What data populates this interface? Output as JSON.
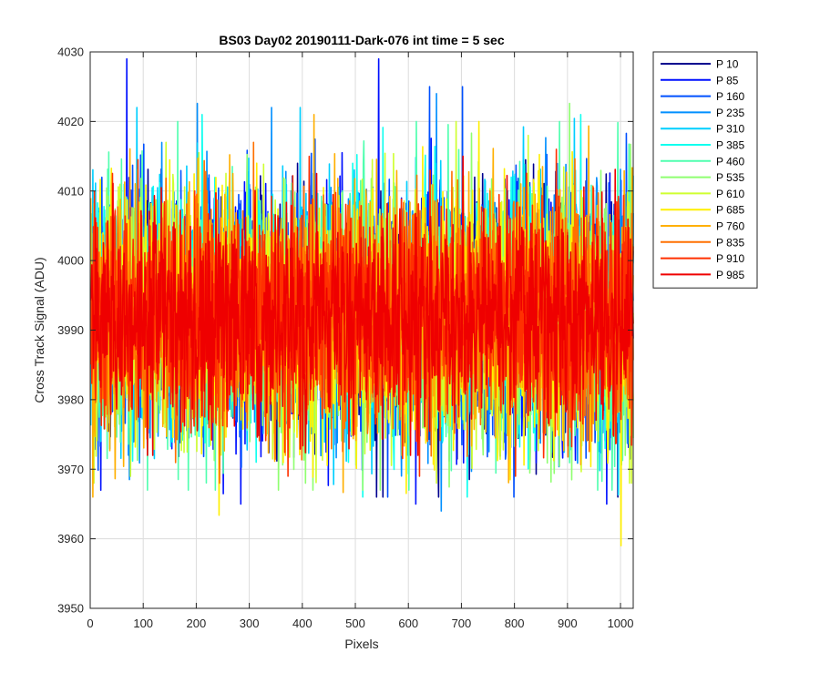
{
  "chart_data": {
    "type": "line",
    "title": "BS03 Day02 20190111-Dark-076 int time = 5 sec",
    "xlabel": "Pixels",
    "ylabel": "Cross Track Signal (ADU)",
    "xlim": [
      0,
      1024
    ],
    "ylim": [
      3950,
      4030
    ],
    "xticks": [
      0,
      100,
      200,
      300,
      400,
      500,
      600,
      700,
      800,
      900,
      1000
    ],
    "yticks": [
      3950,
      3960,
      3970,
      3980,
      3990,
      4000,
      4010,
      4020,
      4030
    ],
    "grid": true,
    "legend_position": "outside-top-right",
    "series": [
      {
        "name": "P 10",
        "color": "#00008F",
        "mean": 3992,
        "noise": 9.0,
        "min": 3966,
        "max": 4028
      },
      {
        "name": "P 85",
        "color": "#0010FF",
        "mean": 3992,
        "noise": 9.0,
        "min": 3965,
        "max": 4029
      },
      {
        "name": "P 160",
        "color": "#0050FF",
        "mean": 3992,
        "noise": 9.0,
        "min": 3966,
        "max": 4025
      },
      {
        "name": "P 235",
        "color": "#008FFF",
        "mean": 3992,
        "noise": 9.0,
        "min": 3964,
        "max": 4024
      },
      {
        "name": "P 310",
        "color": "#00CFFF",
        "mean": 3992,
        "noise": 9.0,
        "min": 3963,
        "max": 4022
      },
      {
        "name": "P 385",
        "color": "#10FFEF",
        "mean": 3992,
        "noise": 9.0,
        "min": 3966,
        "max": 4021
      },
      {
        "name": "P 460",
        "color": "#50FFAF",
        "mean": 3992,
        "noise": 9.0,
        "min": 3967,
        "max": 4020
      },
      {
        "name": "P 535",
        "color": "#8FFF70",
        "mean": 3992,
        "noise": 9.0,
        "min": 3967,
        "max": 4027
      },
      {
        "name": "P 610",
        "color": "#CFFF30",
        "mean": 3992,
        "noise": 9.0,
        "min": 3968,
        "max": 4020
      },
      {
        "name": "P 685",
        "color": "#FFEF00",
        "mean": 3992,
        "noise": 9.0,
        "min": 3959,
        "max": 4020
      },
      {
        "name": "P 760",
        "color": "#FFAF00",
        "mean": 3992,
        "noise": 9.0,
        "min": 3966,
        "max": 4021
      },
      {
        "name": "P 835",
        "color": "#FF7000",
        "mean": 3992,
        "noise": 8.5,
        "min": 3968,
        "max": 4017
      },
      {
        "name": "P 910",
        "color": "#FF3000",
        "mean": 3992,
        "noise": 8.0,
        "min": 3969,
        "max": 4016
      },
      {
        "name": "P 985",
        "color": "#EF0000",
        "mean": 3992,
        "noise": 7.5,
        "min": 3972,
        "max": 4015
      }
    ]
  }
}
